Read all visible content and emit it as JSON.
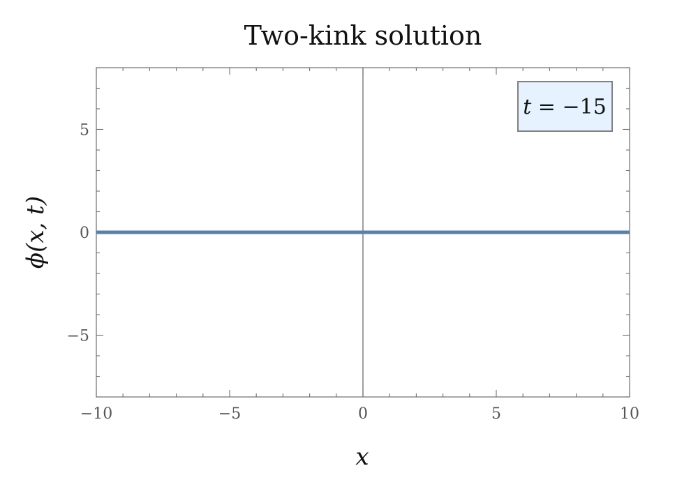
{
  "chart_data": {
    "type": "line",
    "title": "Two-kink solution",
    "xlabel": "x",
    "ylabel": "ϕ(x, t)",
    "xlim": [
      -10,
      10
    ],
    "ylim": [
      -8,
      8
    ],
    "x_ticks": [
      -10,
      -5,
      0,
      5,
      10
    ],
    "x_tick_labels": [
      "−10",
      "−5",
      "0",
      "5",
      "10"
    ],
    "y_ticks": [
      -5,
      0,
      5
    ],
    "y_tick_labels": [
      "−5",
      "0",
      "5"
    ],
    "grid": false,
    "series": [
      {
        "x": [
          -10,
          -5,
          0,
          5,
          10
        ],
        "values": [
          0,
          0,
          0,
          0,
          0
        ],
        "color": "#5b7fa8"
      }
    ],
    "annotation": {
      "var": "t",
      "op": " = ",
      "value": "−15",
      "position": "top-right",
      "background": "#e6f2ff",
      "border": "#808080"
    }
  }
}
